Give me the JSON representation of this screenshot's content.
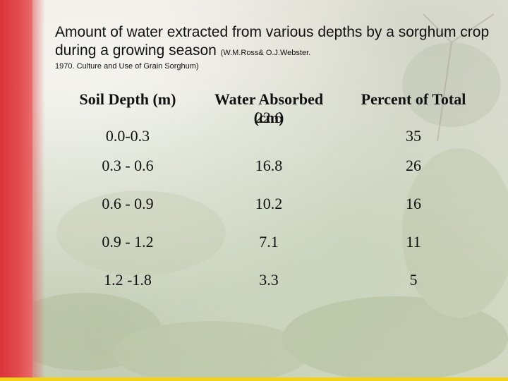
{
  "title": {
    "main": "Amount of water extracted from various depths by a sorghum crop during a growing season ",
    "citation_inline": "(W.M.Ross& O.J.Webster.",
    "citation_line2": "1970. Culture and Use of Grain Sorghum)"
  },
  "table": {
    "headers": [
      "Soil Depth  (m)",
      "Water Absorbed",
      "Percent of Total"
    ],
    "header_col2_line2": "(cm)",
    "rows": [
      [
        "0.0-0.3",
        "22.6",
        "35"
      ],
      [
        "0.3 - 0.6",
        "16.8",
        "26"
      ],
      [
        "0.6 - 0.9",
        "10.2",
        "16"
      ],
      [
        "0.9 - 1.2",
        "7.1",
        "11"
      ],
      [
        "1.2 -1.8",
        "3.3",
        "5"
      ]
    ]
  },
  "colors": {
    "left_bar": "#e44d50",
    "bottom_line": "#f2d21b",
    "text": "#111111"
  }
}
